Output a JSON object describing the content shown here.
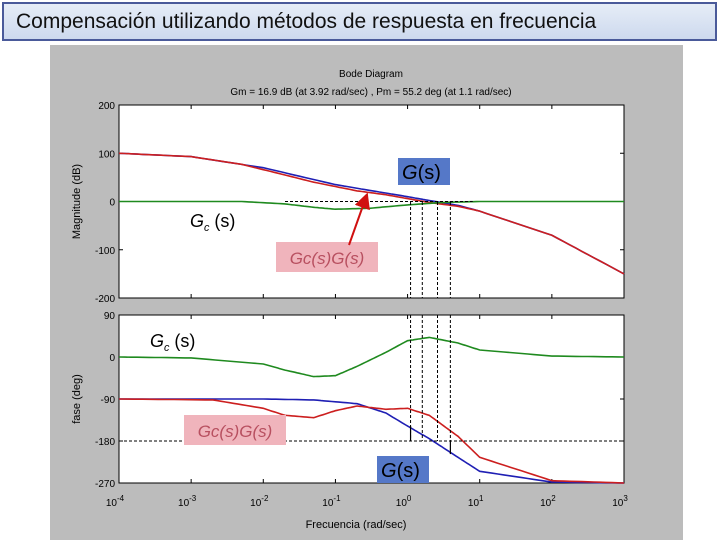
{
  "slide": {
    "title": "Compensación utilizando métodos de respuesta en frecuencia"
  },
  "chart_data": {
    "type": "line",
    "title": "Bode Diagram",
    "subtitle": "Gm = 16.9 dB (at 3.92 rad/sec) ,  Pm = 55.2 deg (at 1.1 rad/sec)",
    "xlabel": "Frecuencia  (rad/sec)",
    "xscale": "log",
    "xlim": [
      0.0001,
      1000
    ],
    "x_ticks": [
      {
        "base": "10",
        "exp": "-4"
      },
      {
        "base": "10",
        "exp": "-3"
      },
      {
        "base": "10",
        "exp": "-2"
      },
      {
        "base": "10",
        "exp": "-1"
      },
      {
        "base": "10",
        "exp": "0"
      },
      {
        "base": "10",
        "exp": "1"
      },
      {
        "base": "10",
        "exp": "2"
      },
      {
        "base": "10",
        "exp": "3"
      }
    ],
    "colors": {
      "G": "#1f1fb4",
      "GcG": "#cc1f1f",
      "Gc": "#1f8a1f",
      "label_blue": "#5578c8",
      "label_pink": "#f0b4bc"
    },
    "magnitude": {
      "ylabel": "Magnitude (dB)",
      "ylim": [
        -200,
        200
      ],
      "yticks": [
        "200",
        "100",
        "0",
        "-100",
        "-200"
      ],
      "series": [
        {
          "key": "G",
          "x": [
            0.0001,
            0.001,
            0.01,
            0.1,
            0.3,
            1,
            2,
            5,
            10,
            100,
            1000
          ],
          "y": [
            100,
            93,
            70,
            35,
            23,
            10,
            2,
            -8,
            -20,
            -70,
            -150
          ]
        },
        {
          "key": "GcG",
          "x": [
            0.0001,
            0.001,
            0.005,
            0.02,
            0.05,
            0.2,
            0.5,
            1,
            2,
            5,
            10,
            100,
            1000
          ],
          "y": [
            100,
            93,
            77,
            55,
            40,
            22,
            14,
            6,
            -2,
            -10,
            -20,
            -70,
            -150
          ]
        },
        {
          "key": "Gc",
          "x": [
            0.0001,
            0.005,
            0.02,
            0.05,
            0.1,
            0.3,
            1,
            3,
            10,
            100,
            1000
          ],
          "y": [
            0,
            0,
            -5,
            -12,
            -16,
            -14,
            -7,
            -2,
            0,
            0,
            0
          ]
        }
      ]
    },
    "phase": {
      "ylabel": "fase (deg)",
      "ylim": [
        -270,
        90
      ],
      "yticks": [
        "90",
        "0",
        "-90",
        "-180",
        "-270"
      ],
      "series": [
        {
          "key": "G",
          "x": [
            0.0001,
            0.01,
            0.05,
            0.2,
            0.5,
            1,
            2,
            5,
            10,
            100,
            1000
          ],
          "y": [
            -90,
            -90,
            -92,
            -100,
            -120,
            -148,
            -175,
            -215,
            -245,
            -268,
            -270
          ]
        },
        {
          "key": "GcG",
          "x": [
            0.0001,
            0.002,
            0.01,
            0.02,
            0.05,
            0.1,
            0.2,
            0.5,
            1,
            2,
            5,
            10,
            100,
            1000
          ],
          "y": [
            -90,
            -92,
            -110,
            -125,
            -130,
            -115,
            -105,
            -112,
            -110,
            -125,
            -170,
            -215,
            -265,
            -270
          ]
        },
        {
          "key": "Gc",
          "x": [
            0.0001,
            0.001,
            0.01,
            0.02,
            0.05,
            0.1,
            0.2,
            0.5,
            1,
            2,
            5,
            10,
            100,
            1000
          ],
          "y": [
            0,
            -2,
            -15,
            -28,
            -42,
            -40,
            -20,
            10,
            35,
            42,
            30,
            15,
            2,
            0
          ]
        }
      ]
    },
    "annotations": {
      "mag_G": {
        "italic": "G",
        "paren": "(s)"
      },
      "mag_Gc": {
        "main": "G",
        "sub": "c",
        "paren": "(s)"
      },
      "mag_GcG": "Gc(s)G(s)",
      "ph_Gc": {
        "main": "G",
        "sub": "c",
        "paren": "(s)"
      },
      "ph_GcG": "Gc(s)G(s)",
      "ph_G": {
        "italic": "G",
        "paren": "(s)"
      }
    },
    "markers": {
      "freqs": [
        1.1,
        1.6,
        2.6,
        3.92
      ]
    }
  }
}
